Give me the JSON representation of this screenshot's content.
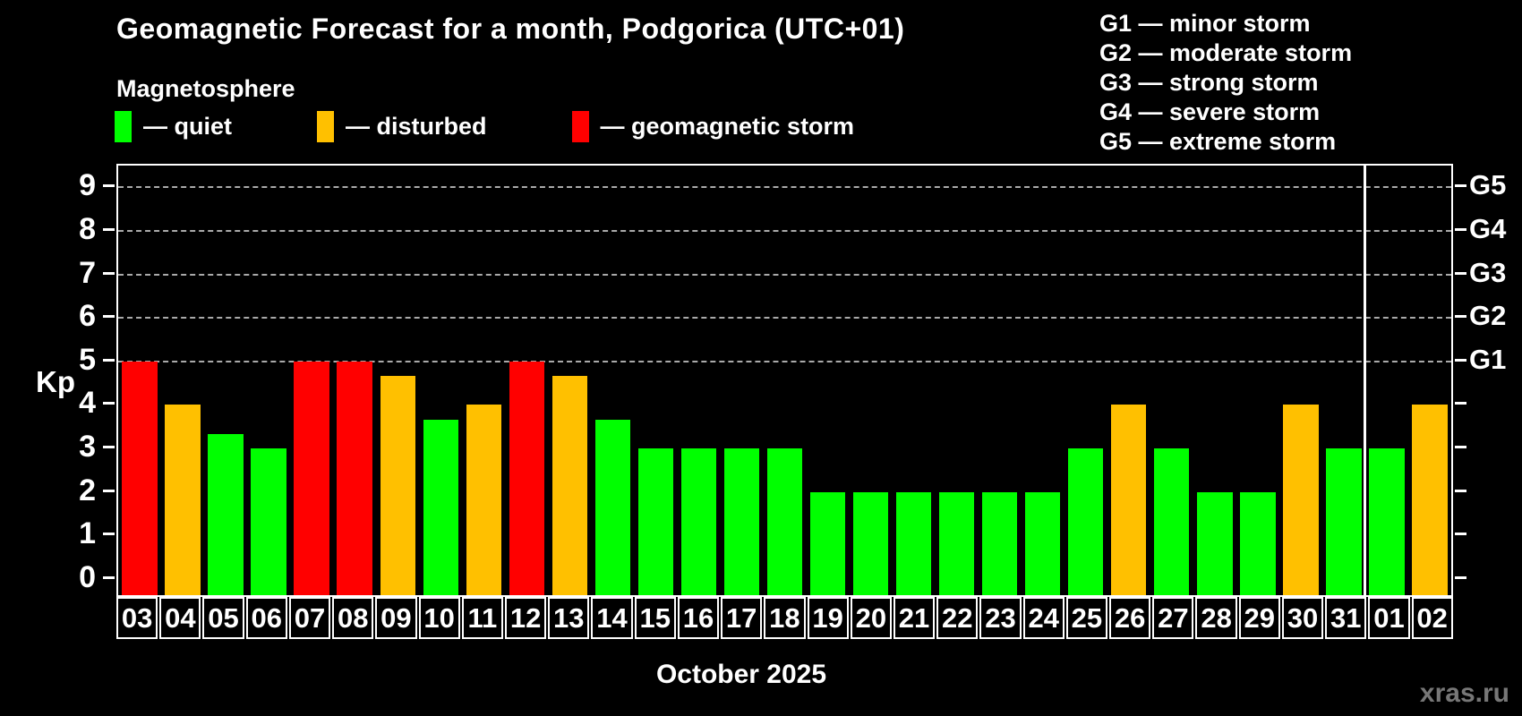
{
  "header": {
    "title": "Geomagnetic Forecast for a month, Podgorica (UTC+01)",
    "subtitle": "Magnetosphere"
  },
  "legend": {
    "items": [
      {
        "key": "quiet",
        "label": "— quiet"
      },
      {
        "key": "disturbed",
        "label": "— disturbed"
      },
      {
        "key": "storm",
        "label": "— geomagnetic storm"
      }
    ]
  },
  "g_legend": {
    "lines": [
      "G1 — minor storm",
      "G2 — moderate storm",
      "G3 — strong storm",
      "G4 — severe storm",
      "G5 — extreme storm"
    ]
  },
  "colors": {
    "quiet": "#00ff00",
    "disturbed": "#ffc000",
    "storm": "#ff0000",
    "axis": "#ffffff",
    "grid": "#aaaaaa",
    "watermark": "#777777",
    "background": "#000000"
  },
  "chart_data": {
    "type": "bar",
    "title": "Geomagnetic Forecast for a month, Podgorica (UTC+01)",
    "xlabel": "October 2025",
    "ylabel": "Kp",
    "ylim": [
      -0.37,
      9.5
    ],
    "yticks": [
      0,
      1,
      2,
      3,
      4,
      5,
      6,
      7,
      8,
      9
    ],
    "grid_levels": [
      5,
      6,
      7,
      8,
      9
    ],
    "right_axis_labels": [
      {
        "value": 5,
        "label": "G1"
      },
      {
        "value": 6,
        "label": "G2"
      },
      {
        "value": 7,
        "label": "G3"
      },
      {
        "value": 8,
        "label": "G4"
      },
      {
        "value": 9,
        "label": "G5"
      }
    ],
    "categories": [
      "03",
      "04",
      "05",
      "06",
      "07",
      "08",
      "09",
      "10",
      "11",
      "12",
      "13",
      "14",
      "15",
      "16",
      "17",
      "18",
      "19",
      "20",
      "21",
      "22",
      "23",
      "24",
      "25",
      "26",
      "27",
      "28",
      "29",
      "30",
      "31",
      "01",
      "02"
    ],
    "values": [
      5,
      4,
      3.33,
      3,
      5,
      5,
      4.67,
      3.67,
      4,
      5,
      4.67,
      3.67,
      3,
      3,
      3,
      3,
      2,
      2,
      2,
      2,
      2,
      2,
      3,
      4,
      3,
      2,
      2,
      4,
      3,
      3,
      4
    ],
    "statuses": [
      "storm",
      "disturbed",
      "quiet",
      "quiet",
      "storm",
      "storm",
      "disturbed",
      "quiet",
      "disturbed",
      "storm",
      "disturbed",
      "quiet",
      "quiet",
      "quiet",
      "quiet",
      "quiet",
      "quiet",
      "quiet",
      "quiet",
      "quiet",
      "quiet",
      "quiet",
      "quiet",
      "disturbed",
      "quiet",
      "quiet",
      "quiet",
      "disturbed",
      "quiet",
      "quiet",
      "disturbed"
    ],
    "month_separator_after_index": 28,
    "legend_position": "top-left",
    "grid": "dashed-upper-levels-only"
  },
  "footer": {
    "watermark": "xras.ru"
  }
}
